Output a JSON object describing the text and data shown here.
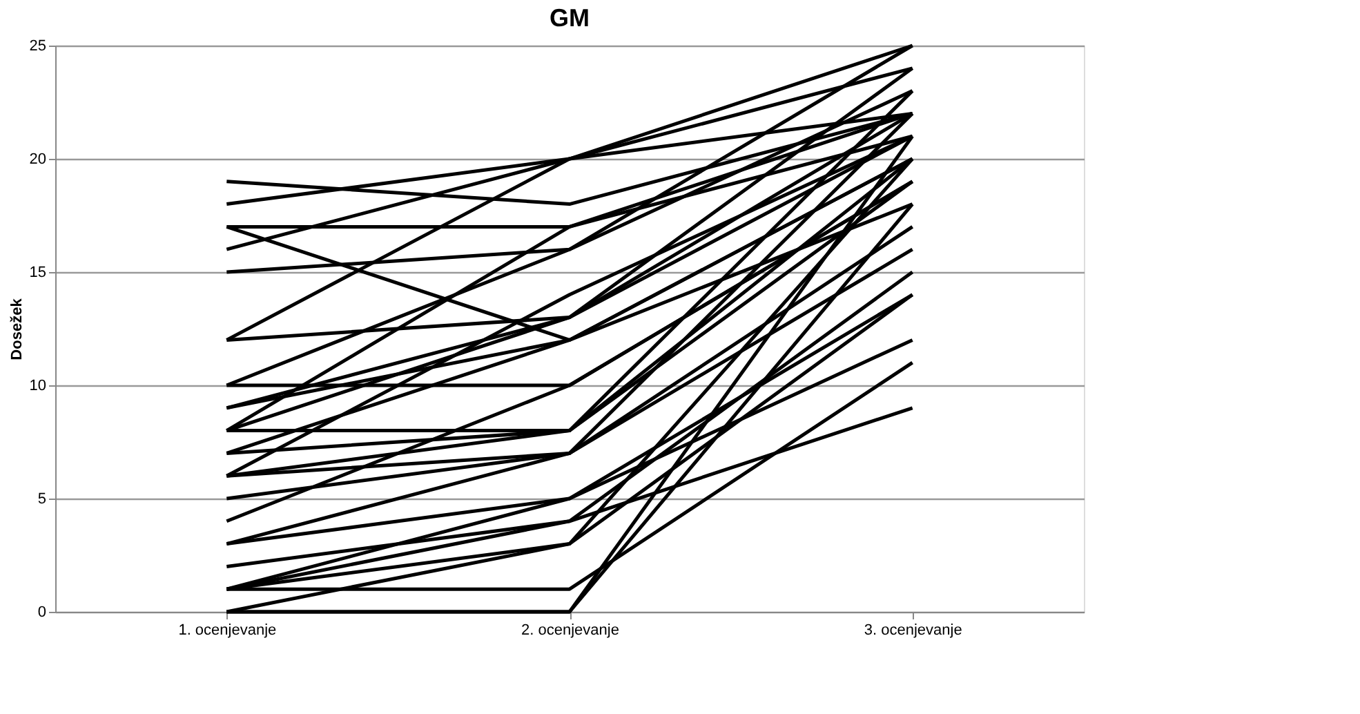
{
  "chart_data": {
    "type": "line",
    "title": "GM",
    "ylabel": "Dosežek",
    "categories": [
      "1. ocenjevanje",
      "2. ocenjevanje",
      "3. ocenjevanje"
    ],
    "ylim": [
      0,
      25
    ],
    "yticks": [
      0,
      5,
      10,
      15,
      20,
      25
    ],
    "grid": "y",
    "legend": false,
    "marker": "none",
    "line_style": "solid",
    "series": [
      {
        "color": "#000000",
        "values": [
          19,
          18,
          22
        ]
      },
      {
        "color": "#000000",
        "values": [
          18,
          20,
          25
        ]
      },
      {
        "color": "#000000",
        "values": [
          17,
          17,
          21
        ]
      },
      {
        "color": "#000000",
        "values": [
          17,
          12,
          20
        ]
      },
      {
        "color": "#000000",
        "values": [
          16,
          20,
          24
        ]
      },
      {
        "color": "#000000",
        "values": [
          15,
          16,
          23
        ]
      },
      {
        "color": "#000000",
        "values": [
          12,
          20,
          22
        ]
      },
      {
        "color": "#000000",
        "values": [
          12,
          13,
          21
        ]
      },
      {
        "color": "#000000",
        "values": [
          10,
          10,
          19
        ]
      },
      {
        "color": "#000000",
        "values": [
          10,
          16,
          25
        ]
      },
      {
        "color": "#000000",
        "values": [
          9,
          13,
          22
        ]
      },
      {
        "color": "#000000",
        "values": [
          9,
          12,
          20
        ]
      },
      {
        "color": "#000000",
        "values": [
          8,
          13,
          24
        ]
      },
      {
        "color": "#000000",
        "values": [
          8,
          8,
          23
        ]
      },
      {
        "color": "#000000",
        "values": [
          8,
          17,
          22
        ]
      },
      {
        "color": "#000000",
        "values": [
          7,
          8,
          20
        ]
      },
      {
        "color": "#000000",
        "values": [
          7,
          12,
          18
        ]
      },
      {
        "color": "#000000",
        "values": [
          6,
          14,
          21
        ]
      },
      {
        "color": "#000000",
        "values": [
          6,
          8,
          19
        ]
      },
      {
        "color": "#000000",
        "values": [
          6,
          7,
          17
        ]
      },
      {
        "color": "#000000",
        "values": [
          5,
          7,
          22
        ]
      },
      {
        "color": "#000000",
        "values": [
          4,
          10,
          19
        ]
      },
      {
        "color": "#000000",
        "values": [
          3,
          7,
          16
        ]
      },
      {
        "color": "#000000",
        "values": [
          3,
          5,
          14
        ]
      },
      {
        "color": "#000000",
        "values": [
          2,
          4,
          15
        ]
      },
      {
        "color": "#000000",
        "values": [
          1,
          3,
          14
        ]
      },
      {
        "color": "#000000",
        "values": [
          1,
          5,
          12
        ]
      },
      {
        "color": "#000000",
        "values": [
          1,
          1,
          11
        ]
      },
      {
        "color": "#000000",
        "values": [
          1,
          4,
          9
        ]
      },
      {
        "color": "#000000",
        "values": [
          0,
          0,
          21
        ]
      },
      {
        "color": "#000000",
        "values": [
          0,
          3,
          20
        ]
      },
      {
        "color": "#000000",
        "values": [
          0,
          0,
          18
        ]
      }
    ]
  }
}
